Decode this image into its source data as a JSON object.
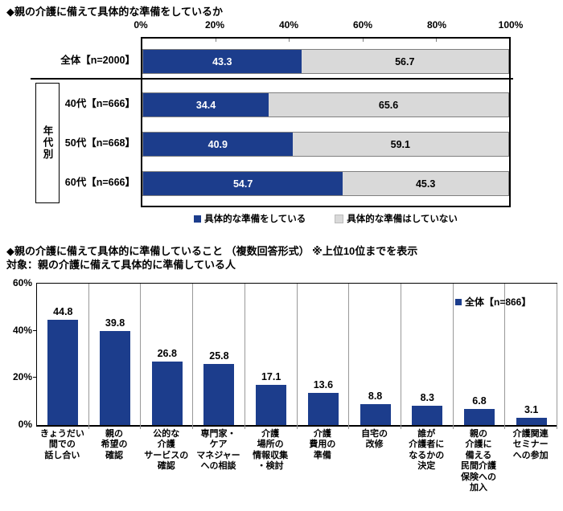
{
  "colors": {
    "bar_blue": "#1c3d8c",
    "bar_gray": "#d9d9d9"
  },
  "chart_data": [
    {
      "type": "bar",
      "orientation": "horizontal-stacked",
      "title": "◆親の介護に備えて具体的な準備をしているか",
      "categories": [
        "全体【n=2000】",
        "40代【n=666】",
        "50代【n=668】",
        "60代【n=666】"
      ],
      "series": [
        {
          "name": "具体的な準備をしている",
          "values": [
            43.3,
            34.4,
            40.9,
            54.7
          ],
          "color": "#1c3d8c"
        },
        {
          "name": "具体的な準備はしていない",
          "values": [
            56.7,
            65.6,
            59.1,
            45.3
          ],
          "color": "#d9d9d9"
        }
      ],
      "group_label": "年代別",
      "xlim": [
        0,
        100
      ],
      "x_ticks": [
        "0%",
        "20%",
        "40%",
        "60%",
        "80%",
        "100%"
      ],
      "legend_position": "bottom",
      "grid": false
    },
    {
      "type": "bar",
      "orientation": "vertical",
      "title": "◆親の介護に備えて具体的に準備していること （複数回答形式） ※上位10位までを表示",
      "subtitle": "対象：親の介護に備えて具体的に準備している人",
      "legend": "全体【n=866】",
      "categories": [
        "きょうだい\n間での\n話し合い",
        "親の\n希望の\n確認",
        "公的な\n介護\nサービスの\n確認",
        "専門家・\nケア\nマネジャー\nへの相談",
        "介護\n場所の\n情報収集\n・検討",
        "介護\n費用の\n準備",
        "自宅の\n改修",
        "誰が\n介護者に\nなるかの\n決定",
        "親の\n介護に\n備える\n民間介護\n保険への\n加入",
        "介護関連\nセミナー\nへの参加"
      ],
      "values": [
        44.8,
        39.8,
        26.8,
        25.8,
        17.1,
        13.6,
        8.8,
        8.3,
        6.8,
        3.1
      ],
      "ylim": [
        0,
        60
      ],
      "y_ticks": [
        "60%",
        "40%",
        "20%",
        "0%"
      ],
      "legend_position": "top-right-inside",
      "grid": "vertical-separators"
    }
  ]
}
